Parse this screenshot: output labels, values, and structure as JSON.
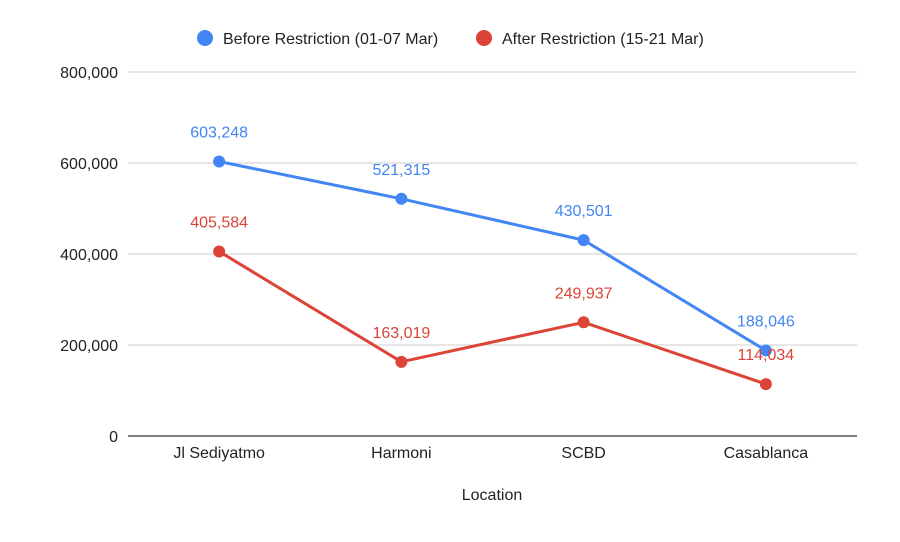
{
  "chart_data": {
    "type": "line",
    "title": "",
    "xlabel": "Location",
    "ylabel": "",
    "categories": [
      "Jl Sediyatmo",
      "Harmoni",
      "SCBD",
      "Casablanca"
    ],
    "ylim": [
      0,
      800000
    ],
    "yticks": [
      0,
      200000,
      400000,
      600000,
      800000
    ],
    "ytick_labels": [
      "0",
      "200,000",
      "400,000",
      "600,000",
      "800,000"
    ],
    "grid": true,
    "legend_position": "top",
    "series": [
      {
        "name": "Before Restriction (01-07 Mar)",
        "color": "#4285f4",
        "values": [
          603248,
          521315,
          430501,
          188046
        ],
        "labels": [
          "603,248",
          "521,315",
          "430,501",
          "188,046"
        ]
      },
      {
        "name": "After Restriction (15-21 Mar)",
        "color": "#db4437",
        "values": [
          405584,
          163019,
          249937,
          114034
        ],
        "labels": [
          "405,584",
          "163,019",
          "249,937",
          "114,034"
        ]
      }
    ]
  }
}
